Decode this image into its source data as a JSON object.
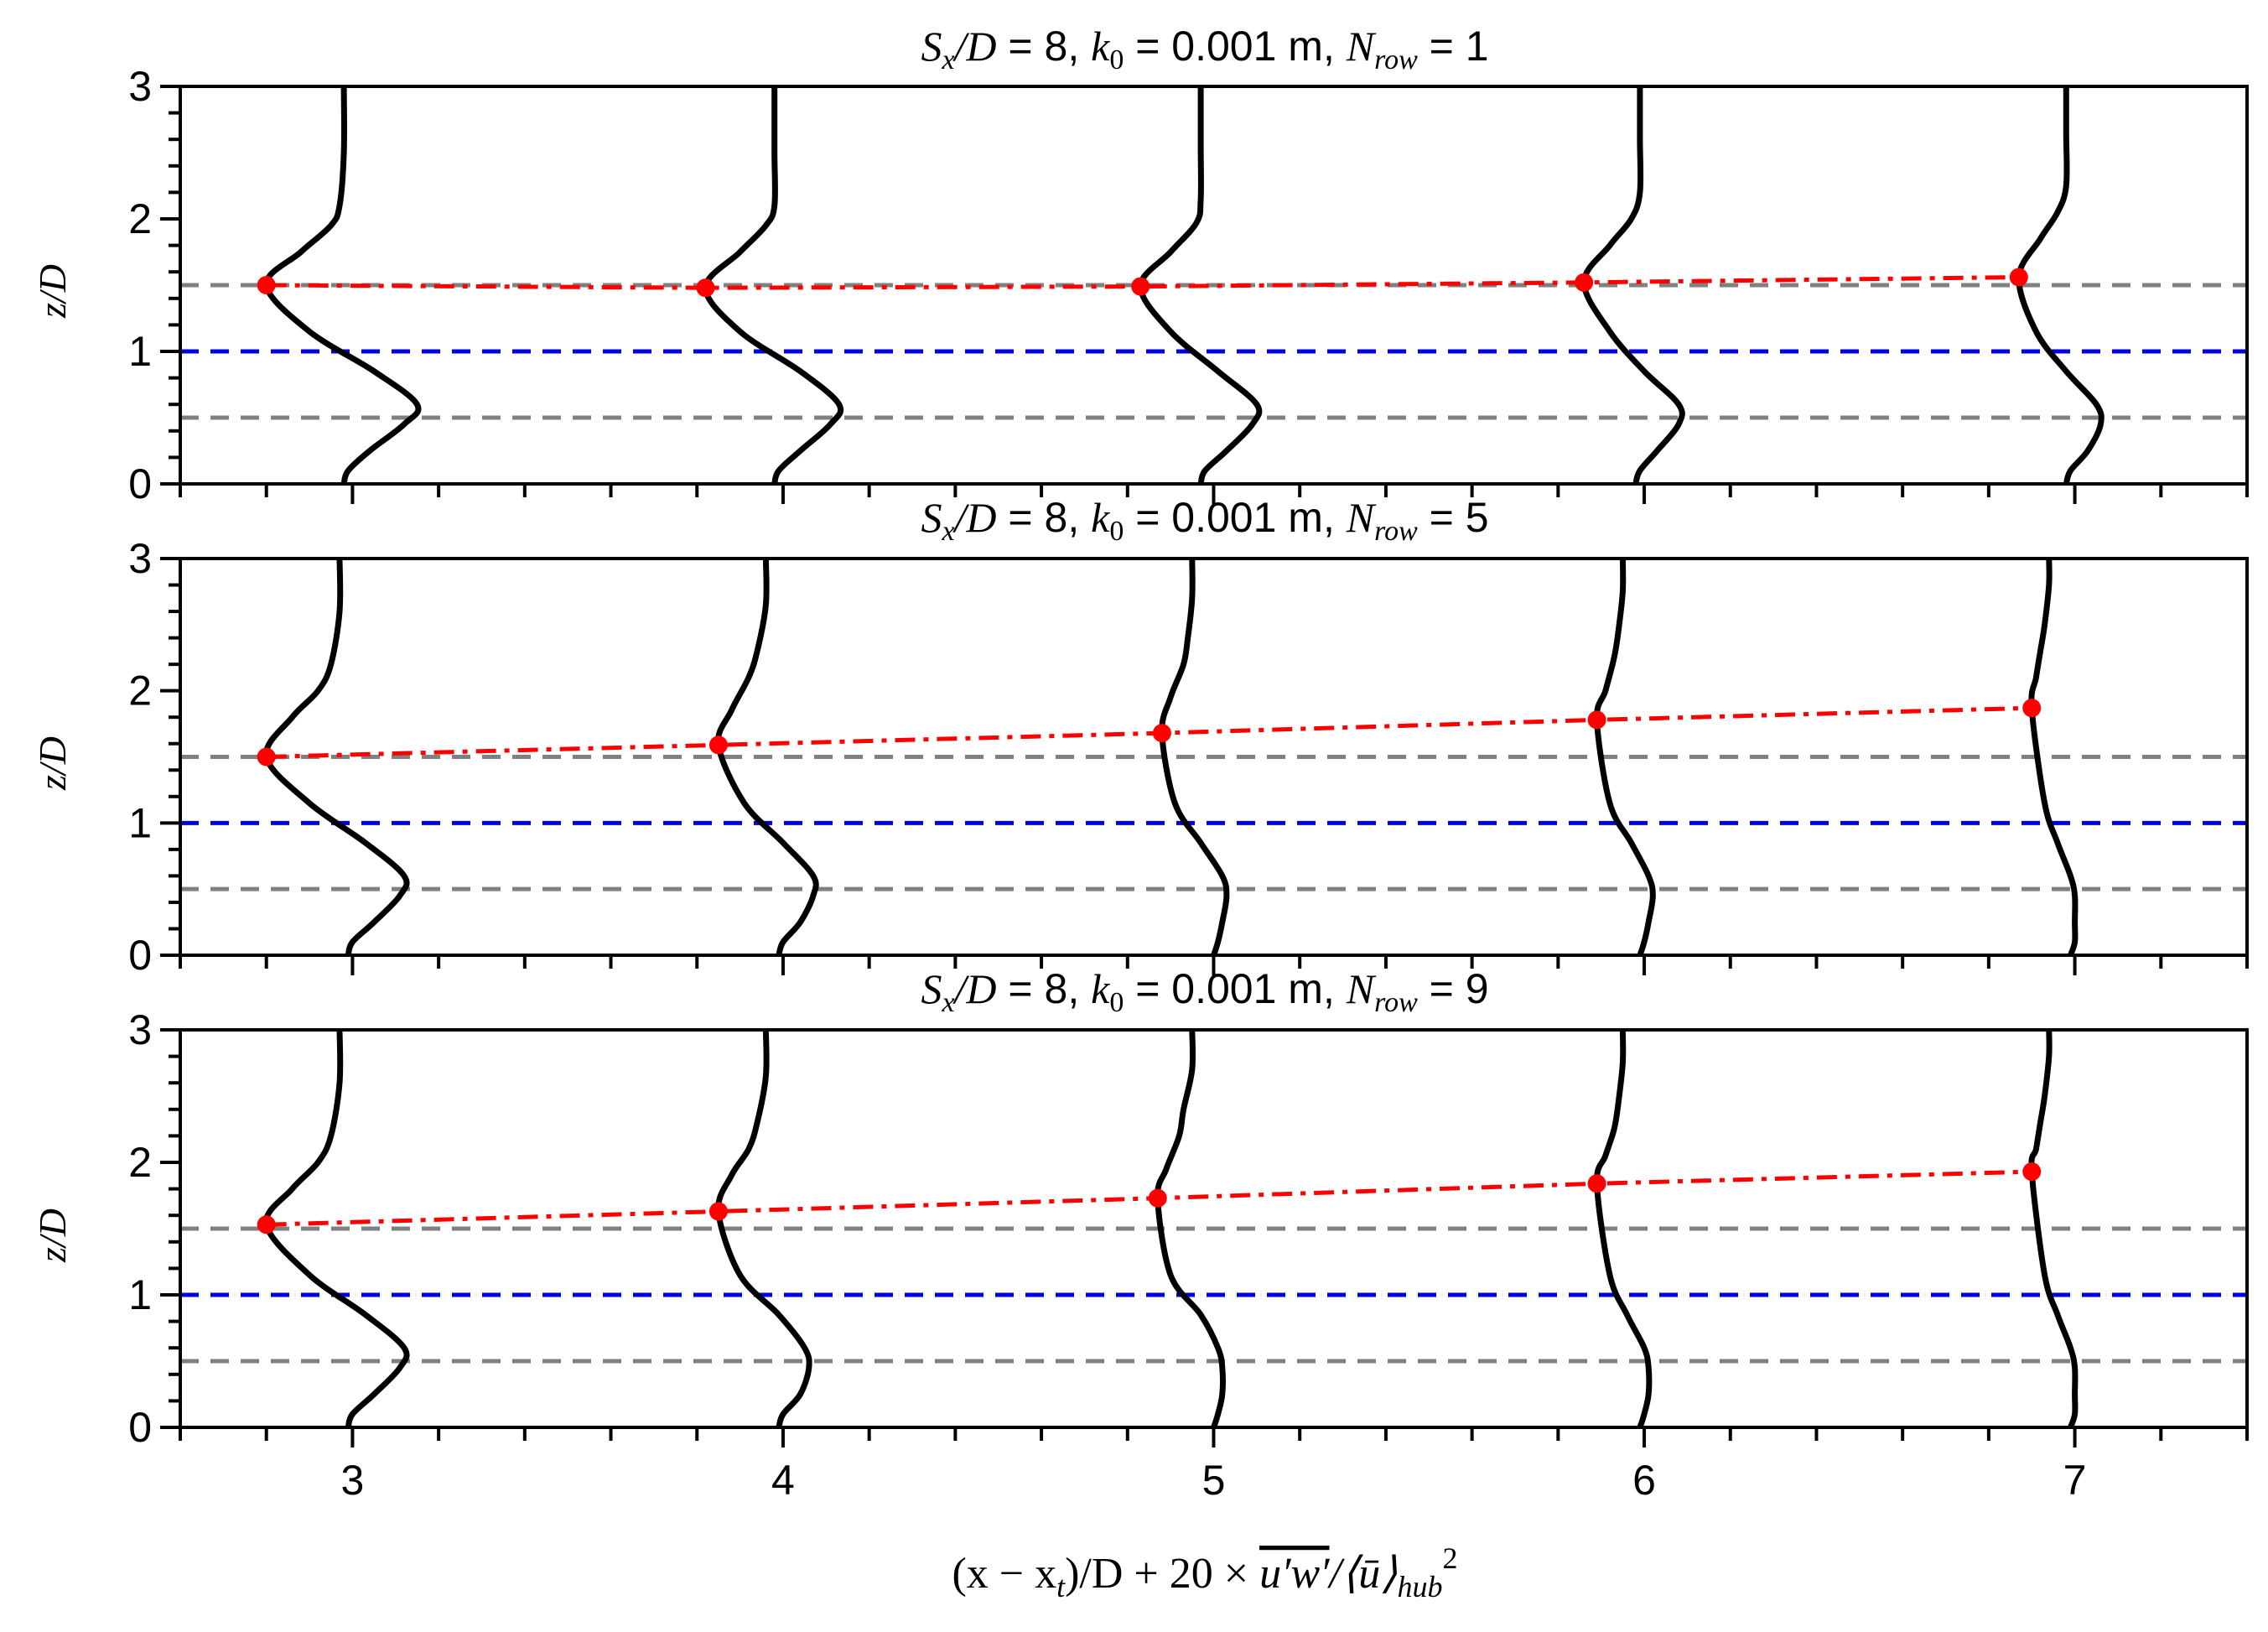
{
  "chart_data": [
    {
      "type": "line",
      "title": {
        "prefix": "S",
        "prefix_sub": "x",
        "mid1": "/D",
        "eq1": " = 8, ",
        "k": "k",
        "k_sub": "0",
        "eq2": " = 0.001 m, ",
        "n": "N",
        "n_sub": "row",
        "eq3": " = 1"
      },
      "ylabel": "z/D",
      "xlim": [
        2.6,
        7.4
      ],
      "ylim": [
        0,
        3
      ],
      "yticks": [
        "0",
        "1",
        "2",
        "3"
      ],
      "reference_lines": {
        "hub": 1.0,
        "tip": [
          0.5,
          1.5
        ]
      },
      "peak_trace": {
        "x": [
          2.8,
          3.82,
          4.83,
          5.86,
          6.87
        ],
        "y": [
          1.5,
          1.48,
          1.49,
          1.52,
          1.56
        ]
      },
      "profile_stations": [
        3,
        4,
        5,
        6,
        7
      ],
      "profiles": [
        {
          "station": 3,
          "x": [
            2.98,
            2.99,
            3.04,
            3.12,
            3.15,
            3.05,
            2.9,
            2.8,
            2.88,
            2.95,
            2.97,
            2.98,
            2.98
          ],
          "y": [
            0.0,
            0.1,
            0.25,
            0.45,
            0.6,
            0.85,
            1.15,
            1.5,
            1.75,
            1.95,
            2.1,
            2.5,
            3.0
          ]
        },
        {
          "station": 4,
          "x": [
            3.98,
            3.99,
            4.04,
            4.11,
            4.13,
            4.04,
            3.9,
            3.82,
            3.9,
            3.96,
            3.98,
            3.98,
            3.98
          ],
          "y": [
            0.0,
            0.1,
            0.25,
            0.45,
            0.6,
            0.85,
            1.15,
            1.48,
            1.75,
            1.95,
            2.1,
            2.5,
            3.0
          ]
        },
        {
          "station": 5,
          "x": [
            4.97,
            4.98,
            5.03,
            5.09,
            5.1,
            5.01,
            4.9,
            4.83,
            4.9,
            4.96,
            4.97,
            4.97,
            4.97
          ],
          "y": [
            0.0,
            0.1,
            0.25,
            0.45,
            0.6,
            0.85,
            1.15,
            1.49,
            1.75,
            1.97,
            2.15,
            2.55,
            3.0
          ]
        },
        {
          "station": 6,
          "x": [
            5.98,
            5.99,
            6.03,
            6.08,
            6.08,
            6.0,
            5.92,
            5.86,
            5.92,
            5.97,
            5.99,
            5.99,
            5.99
          ],
          "y": [
            0.0,
            0.1,
            0.25,
            0.45,
            0.6,
            0.85,
            1.15,
            1.52,
            1.8,
            2.0,
            2.2,
            2.6,
            3.0
          ]
        },
        {
          "station": 7,
          "x": [
            6.98,
            6.99,
            7.03,
            7.06,
            7.05,
            6.98,
            6.91,
            6.87,
            6.92,
            6.96,
            6.98,
            6.98,
            6.98
          ],
          "y": [
            0.0,
            0.1,
            0.25,
            0.45,
            0.6,
            0.85,
            1.15,
            1.56,
            1.85,
            2.05,
            2.25,
            2.65,
            3.0
          ]
        }
      ]
    },
    {
      "type": "line",
      "title": {
        "prefix": "S",
        "prefix_sub": "x",
        "mid1": "/D",
        "eq1": " = 8, ",
        "k": "k",
        "k_sub": "0",
        "eq2": " = 0.001 m, ",
        "n": "N",
        "n_sub": "row",
        "eq3": " = 5"
      },
      "ylabel": "z/D",
      "xlim": [
        2.6,
        7.4
      ],
      "ylim": [
        0,
        3
      ],
      "yticks": [
        "0",
        "1",
        "2",
        "3"
      ],
      "reference_lines": {
        "hub": 1.0,
        "tip": [
          0.5,
          1.5
        ]
      },
      "peak_trace": {
        "x": [
          2.8,
          3.85,
          4.88,
          5.89,
          6.9
        ],
        "y": [
          1.5,
          1.59,
          1.68,
          1.78,
          1.87
        ]
      },
      "profile_stations": [
        3,
        4,
        5,
        6,
        7
      ],
      "profiles": [
        {
          "station": 3,
          "x": [
            2.99,
            3.0,
            3.05,
            3.11,
            3.12,
            3.03,
            2.9,
            2.8,
            2.86,
            2.92,
            2.95,
            2.97,
            2.97
          ],
          "y": [
            0.0,
            0.1,
            0.25,
            0.45,
            0.6,
            0.85,
            1.15,
            1.5,
            1.8,
            2.0,
            2.2,
            2.6,
            3.0
          ]
        },
        {
          "station": 4,
          "x": [
            3.99,
            4.0,
            4.04,
            4.07,
            4.07,
            4.0,
            3.91,
            3.85,
            3.88,
            3.92,
            3.94,
            3.96,
            3.96
          ],
          "y": [
            0.0,
            0.1,
            0.25,
            0.45,
            0.6,
            0.85,
            1.15,
            1.59,
            1.85,
            2.1,
            2.3,
            2.65,
            3.0
          ]
        },
        {
          "station": 5,
          "x": [
            5.0,
            5.01,
            5.02,
            5.03,
            5.02,
            4.97,
            4.91,
            4.88,
            4.9,
            4.93,
            4.94,
            4.95,
            4.95
          ],
          "y": [
            0.0,
            0.1,
            0.25,
            0.45,
            0.6,
            0.85,
            1.15,
            1.68,
            1.95,
            2.2,
            2.4,
            2.7,
            3.0
          ]
        },
        {
          "station": 6,
          "x": [
            5.99,
            6.0,
            6.01,
            6.02,
            6.01,
            5.97,
            5.92,
            5.89,
            5.91,
            5.93,
            5.94,
            5.95,
            5.95
          ],
          "y": [
            0.0,
            0.1,
            0.25,
            0.45,
            0.6,
            0.85,
            1.15,
            1.78,
            2.0,
            2.25,
            2.45,
            2.75,
            3.0
          ]
        },
        {
          "station": 7,
          "x": [
            6.99,
            7.0,
            7.0,
            7.0,
            6.99,
            6.96,
            6.93,
            6.9,
            6.91,
            6.92,
            6.93,
            6.94,
            6.94
          ],
          "y": [
            0.0,
            0.1,
            0.25,
            0.45,
            0.6,
            0.85,
            1.15,
            1.87,
            2.1,
            2.3,
            2.5,
            2.8,
            3.0
          ]
        }
      ]
    },
    {
      "type": "line",
      "title": {
        "prefix": "S",
        "prefix_sub": "x",
        "mid1": "/D",
        "eq1": " = 8, ",
        "k": "k",
        "k_sub": "0",
        "eq2": " = 0.001 m, ",
        "n": "N",
        "n_sub": "row",
        "eq3": " = 9"
      },
      "ylabel": "z/D",
      "xlabel": {
        "a": "(x − x",
        "a_sub": "t",
        "b": ")/D + 20 × ",
        "c": "u′w′",
        "d": "/⟨ū⟩",
        "d_sub": "hub",
        "e": "2"
      },
      "xlim": [
        2.6,
        7.4
      ],
      "ylim": [
        0,
        3
      ],
      "yticks": [
        "0",
        "1",
        "2",
        "3"
      ],
      "xticks": [
        "3",
        "4",
        "5",
        "6",
        "7"
      ],
      "reference_lines": {
        "hub": 1.0,
        "tip": [
          0.5,
          1.5
        ]
      },
      "peak_trace": {
        "x": [
          2.8,
          3.85,
          4.87,
          5.89,
          6.9
        ],
        "y": [
          1.53,
          1.63,
          1.73,
          1.84,
          1.93
        ]
      },
      "profile_stations": [
        3,
        4,
        5,
        6,
        7
      ],
      "profiles": [
        {
          "station": 3,
          "x": [
            2.99,
            3.0,
            3.05,
            3.11,
            3.12,
            3.03,
            2.9,
            2.8,
            2.86,
            2.92,
            2.95,
            2.97,
            2.97
          ],
          "y": [
            0.0,
            0.1,
            0.25,
            0.45,
            0.6,
            0.85,
            1.15,
            1.53,
            1.8,
            2.0,
            2.2,
            2.6,
            3.0
          ]
        },
        {
          "station": 4,
          "x": [
            3.99,
            4.0,
            4.04,
            4.06,
            4.05,
            3.99,
            3.9,
            3.85,
            3.88,
            3.92,
            3.94,
            3.96,
            3.96
          ],
          "y": [
            0.0,
            0.1,
            0.25,
            0.45,
            0.6,
            0.85,
            1.15,
            1.63,
            1.9,
            2.1,
            2.3,
            2.65,
            3.0
          ]
        },
        {
          "station": 5,
          "x": [
            5.0,
            5.01,
            5.02,
            5.02,
            5.01,
            4.97,
            4.9,
            4.87,
            4.89,
            4.92,
            4.93,
            4.95,
            4.95
          ],
          "y": [
            0.0,
            0.1,
            0.25,
            0.45,
            0.6,
            0.85,
            1.15,
            1.73,
            1.95,
            2.2,
            2.4,
            2.7,
            3.0
          ]
        },
        {
          "station": 6,
          "x": [
            5.99,
            6.0,
            6.01,
            6.01,
            6.0,
            5.96,
            5.92,
            5.89,
            5.91,
            5.93,
            5.94,
            5.95,
            5.95
          ],
          "y": [
            0.0,
            0.1,
            0.25,
            0.45,
            0.6,
            0.85,
            1.15,
            1.84,
            2.05,
            2.25,
            2.45,
            2.75,
            3.0
          ]
        },
        {
          "station": 7,
          "x": [
            6.99,
            7.0,
            7.0,
            7.0,
            6.99,
            6.96,
            6.93,
            6.9,
            6.91,
            6.92,
            6.93,
            6.94,
            6.94
          ],
          "y": [
            0.0,
            0.1,
            0.25,
            0.45,
            0.6,
            0.85,
            1.15,
            1.93,
            2.1,
            2.3,
            2.5,
            2.8,
            3.0
          ]
        }
      ]
    }
  ],
  "colors": {
    "profile": "#000000",
    "peak_trace": "#ff0000",
    "hub_line": "#0000e6",
    "tip_line": "#808080",
    "axes": "#000000"
  }
}
